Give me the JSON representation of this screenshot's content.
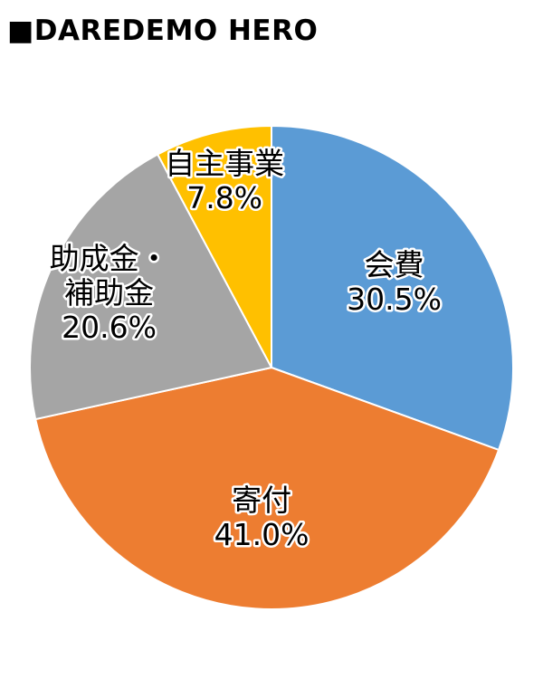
{
  "title": "■DAREDEMO HERO",
  "chart_data": {
    "type": "pie",
    "title": "■DAREDEMO HERO",
    "slices": [
      {
        "label_lines": [
          "会費"
        ],
        "value_text": "30.5%",
        "value": 30.5,
        "color": "#5B9BD5"
      },
      {
        "label_lines": [
          "寄付"
        ],
        "value_text": "41.0%",
        "value": 41.0,
        "color": "#ED7D31"
      },
      {
        "label_lines": [
          "助成金・",
          "補助金"
        ],
        "value_text": "20.6%",
        "value": 20.6,
        "color": "#A5A5A5"
      },
      {
        "label_lines": [
          "自主事業"
        ],
        "value_text": "7.8%",
        "value": 7.8,
        "color": "#FFC000"
      }
    ],
    "start": "12 o'clock",
    "direction": "clockwise",
    "legend": "none"
  }
}
